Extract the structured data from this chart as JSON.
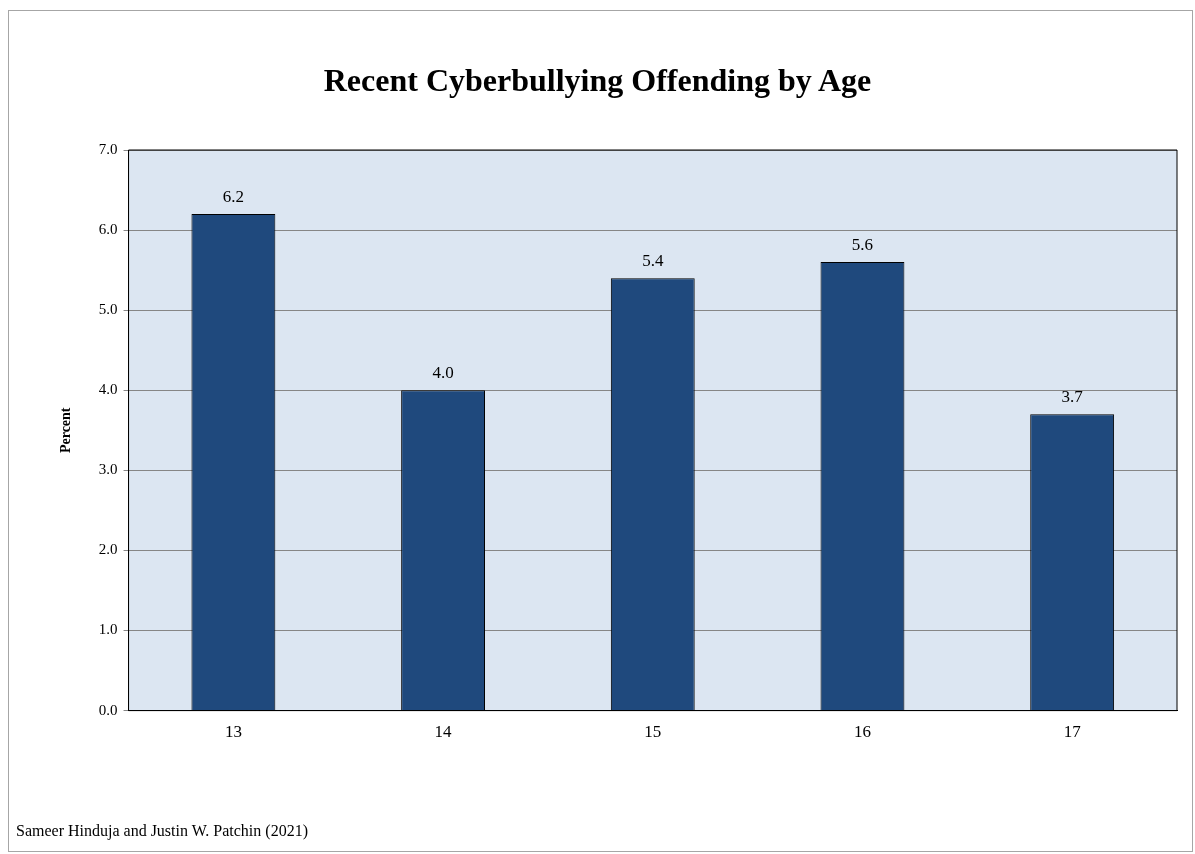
{
  "chart_data": {
    "type": "bar",
    "title": "Recent Cyberbullying Offending by Age",
    "ylabel": "Percent",
    "categories": [
      "13",
      "14",
      "15",
      "16",
      "17"
    ],
    "values": [
      6.2,
      4.0,
      5.4,
      5.6,
      3.7
    ],
    "value_labels": [
      "6.2",
      "4.0",
      "5.4",
      "5.6",
      "3.7"
    ],
    "color": "#1f497d",
    "ylim": [
      0,
      7
    ],
    "yticks": [
      {
        "value": 0,
        "label": "0.0"
      },
      {
        "value": 1,
        "label": "1.0"
      },
      {
        "value": 2,
        "label": "2.0"
      },
      {
        "value": 3,
        "label": "3.0"
      },
      {
        "value": 4,
        "label": "4.0"
      },
      {
        "value": 5,
        "label": "5.0"
      },
      {
        "value": 6,
        "label": "6.0"
      },
      {
        "value": 7,
        "label": "7.0"
      }
    ],
    "grid": "y",
    "annotations": [
      "Sameer Hinduja and Justin W. Patchin (2021)"
    ]
  }
}
